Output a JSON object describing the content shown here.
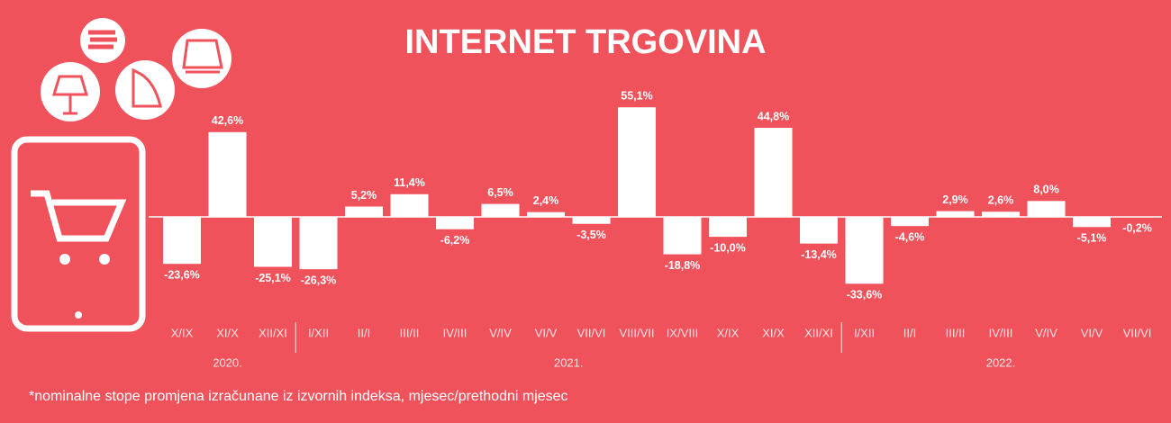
{
  "chart_data": {
    "type": "bar",
    "title": "INTERNET TRGOVINA",
    "categories": [
      "X/IX",
      "XI/X",
      "XII/XI",
      "I/XII",
      "II/I",
      "III/II",
      "IV/III",
      "V/IV",
      "VI/V",
      "VII/VI",
      "VIII/VII",
      "IX/VIII",
      "X/IX",
      "XI/X",
      "XII/XI",
      "I/XII",
      "II/I",
      "III/II",
      "IV/III",
      "V/IV",
      "VI/V",
      "VII/VI"
    ],
    "values": [
      -23.6,
      42.6,
      -25.1,
      -26.3,
      5.2,
      11.4,
      -6.2,
      6.5,
      2.4,
      -3.5,
      55.1,
      -18.8,
      -10.0,
      44.8,
      -13.4,
      -33.6,
      -4.6,
      2.9,
      2.6,
      8.0,
      -5.1,
      -0.2
    ],
    "value_labels": [
      "-23,6%",
      "42,6%",
      "-25,1%",
      "-26,3%",
      "5,2%",
      "11,4%",
      "-6,2%",
      "6,5%",
      "2,4%",
      "-3,5%",
      "55,1%",
      "-18,8%",
      "-10,0%",
      "44,8%",
      "-13,4%",
      "-33,6%",
      "-4,6%",
      "2,9%",
      "2,6%",
      "8,0%",
      "-5,1%",
      "-0,2%"
    ],
    "color": "#ffffff",
    "groups": [
      {
        "label": "2020.",
        "start": 0,
        "end": 2
      },
      {
        "label": "2021.",
        "start": 3,
        "end": 14
      },
      {
        "label": "2022.",
        "start": 15,
        "end": 21
      }
    ],
    "footnote": "*nominalne stope promjena izračunane iz izvornih indeksa, mjesec/prethodni mjesec"
  }
}
